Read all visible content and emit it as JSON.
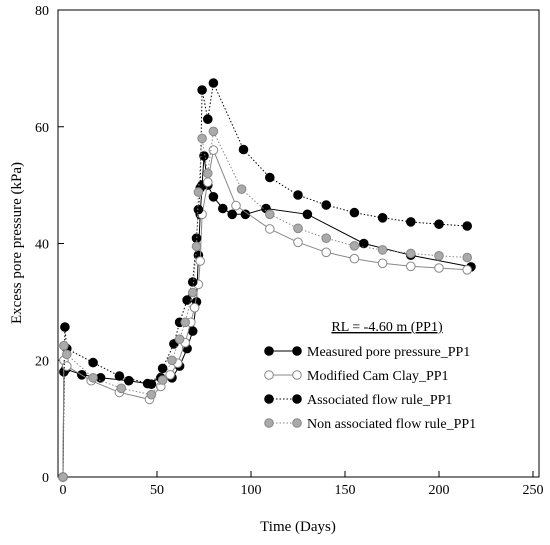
{
  "chart_data": {
    "type": "line",
    "xlabel": "Time (Days)",
    "ylabel": "Excess pore pressure (kPa)",
    "xlim": [
      0,
      250
    ],
    "ylim": [
      0,
      80
    ],
    "xticks": [
      "0",
      "50",
      "100",
      "150",
      "200",
      "250"
    ],
    "yticks": [
      "0",
      "20",
      "40",
      "60",
      "80"
    ],
    "xtick_values": [
      0,
      50,
      100,
      150,
      200,
      250
    ],
    "ytick_values": [
      0,
      20,
      40,
      60,
      80
    ],
    "grid": false,
    "legend_title": "RL = -4.60 m (PP1)",
    "legend_position": "lower-right",
    "series": [
      {
        "name": "Measured pore pressure_PP1",
        "line_style": "solid",
        "line_color": "#000000",
        "marker_fill": "#000000",
        "marker_stroke": "#000000",
        "x": [
          0,
          0.5,
          1.5,
          10,
          20,
          35,
          45,
          52,
          58,
          62,
          66,
          69,
          71,
          72,
          73,
          74,
          75,
          77,
          80,
          85,
          90,
          97,
          108,
          130,
          160,
          185,
          217
        ],
        "y": [
          0,
          18,
          18.5,
          17.5,
          17,
          16.5,
          16,
          17,
          17,
          19,
          22,
          25,
          30,
          38,
          45,
          50,
          55,
          50,
          48,
          46,
          45,
          45,
          46,
          45,
          40,
          38,
          36
        ]
      },
      {
        "name": "Modified Cam Clay_PP1",
        "line_style": "solid",
        "line_color": "#888888",
        "marker_fill": "#ffffff",
        "marker_stroke": "#888888",
        "x": [
          0,
          0.5,
          2,
          15,
          30,
          46,
          52,
          57,
          61,
          65,
          68,
          70,
          72,
          73,
          74,
          77,
          80,
          92,
          110,
          125,
          140,
          155,
          170,
          185,
          200,
          215
        ],
        "y": [
          0,
          20,
          19,
          16.5,
          14.5,
          13.3,
          15.5,
          17.5,
          19.5,
          23,
          26.5,
          29,
          33,
          37,
          45,
          50.5,
          56,
          46.5,
          42.5,
          40.2,
          38.5,
          37.4,
          36.6,
          36.1,
          35.8,
          35.5
        ]
      },
      {
        "name": "Associated flow rule_PP1",
        "line_style": "dotted",
        "line_color": "#000000",
        "marker_fill": "#000000",
        "marker_stroke": "#000000",
        "x": [
          0,
          1,
          2,
          16,
          30,
          47,
          53,
          59,
          62,
          66,
          69,
          71,
          72,
          73,
          74,
          77,
          80,
          96,
          110,
          125,
          140,
          155,
          170,
          185,
          200,
          215
        ],
        "y": [
          0,
          25.7,
          22,
          19.6,
          17.3,
          15.9,
          18.6,
          22.8,
          26.5,
          30.3,
          33.4,
          40.9,
          45.8,
          49.5,
          66.3,
          61.3,
          67.5,
          56.1,
          51.3,
          48.3,
          46.6,
          45.3,
          44.4,
          43.7,
          43.3,
          43
        ]
      },
      {
        "name": "Non associated flow rule_PP1",
        "line_style": "dotted",
        "line_color": "#888888",
        "marker_fill": "#aaaaaa",
        "marker_stroke": "#888888",
        "x": [
          0,
          0.5,
          2,
          16,
          31,
          47,
          53,
          58,
          62,
          65,
          69,
          71,
          72,
          74,
          77,
          80,
          95,
          110,
          125,
          140,
          155,
          170,
          185,
          200,
          215
        ],
        "y": [
          0,
          22.5,
          21,
          17,
          15.2,
          14.1,
          16.6,
          20,
          23.6,
          26.5,
          31.6,
          39.5,
          48.8,
          58,
          52,
          59.2,
          49.3,
          45,
          42.6,
          40.9,
          39.6,
          38.9,
          38.3,
          37.9,
          37.6
        ]
      }
    ]
  }
}
